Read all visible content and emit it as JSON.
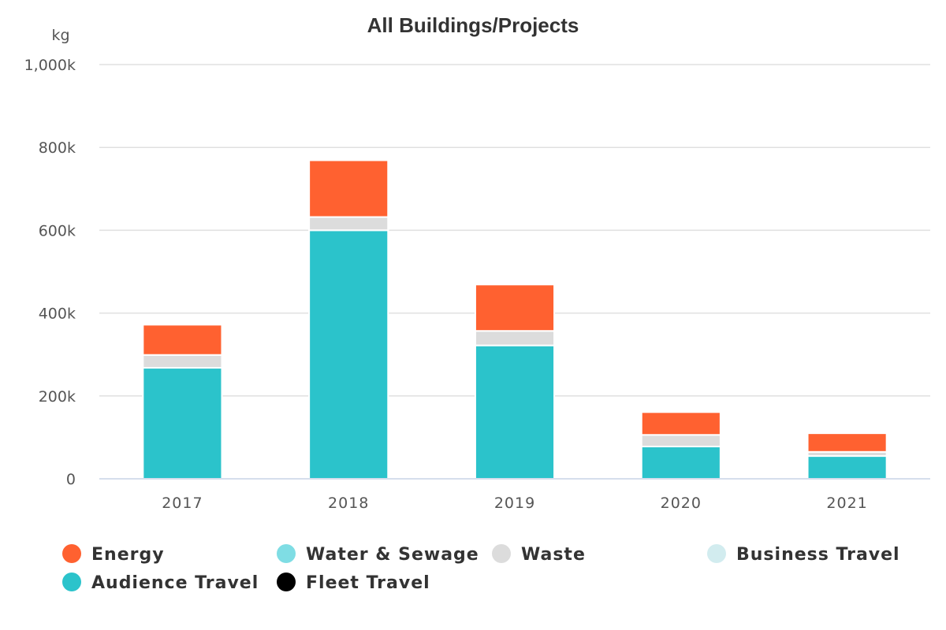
{
  "chart_data": {
    "type": "bar",
    "stacked": true,
    "title": "All Buildings/Projects",
    "ylabel": "kg",
    "ylim": [
      0,
      1000000
    ],
    "yticks": [
      {
        "value": 0,
        "label": "0"
      },
      {
        "value": 200000,
        "label": "200k"
      },
      {
        "value": 400000,
        "label": "400k"
      },
      {
        "value": 600000,
        "label": "600k"
      },
      {
        "value": 800000,
        "label": "800k"
      },
      {
        "value": 1000000,
        "label": "1,000k"
      }
    ],
    "categories": [
      "2017",
      "2018",
      "2019",
      "2020",
      "2021"
    ],
    "series": [
      {
        "name": "Energy",
        "color": "#ff6130",
        "values": [
          73000,
          137000,
          112000,
          55000,
          45000
        ]
      },
      {
        "name": "Water & Sewage",
        "color": "#7fdde4",
        "values": [
          0,
          0,
          0,
          0,
          0
        ]
      },
      {
        "name": "Waste",
        "color": "#dcdcdc",
        "values": [
          31000,
          32000,
          35000,
          28000,
          10000
        ]
      },
      {
        "name": "Business Travel",
        "color": "#d2ecef",
        "values": [
          0,
          0,
          0,
          0,
          0
        ]
      },
      {
        "name": "Audience Travel",
        "color": "#2bc3cb",
        "values": [
          268000,
          600000,
          322000,
          78000,
          55000
        ]
      },
      {
        "name": "Fleet Travel",
        "color": "#000000",
        "values": [
          0,
          0,
          0,
          0,
          0
        ]
      }
    ],
    "stack_order_bottom_to_top": [
      "Audience Travel",
      "Fleet Travel",
      "Business Travel",
      "Waste",
      "Water & Sewage",
      "Energy"
    ],
    "legend": {
      "placement": "bottom",
      "entries": [
        "Energy",
        "Water & Sewage",
        "Waste",
        "Business Travel",
        "Audience Travel",
        "Fleet Travel"
      ]
    },
    "grid": true
  }
}
